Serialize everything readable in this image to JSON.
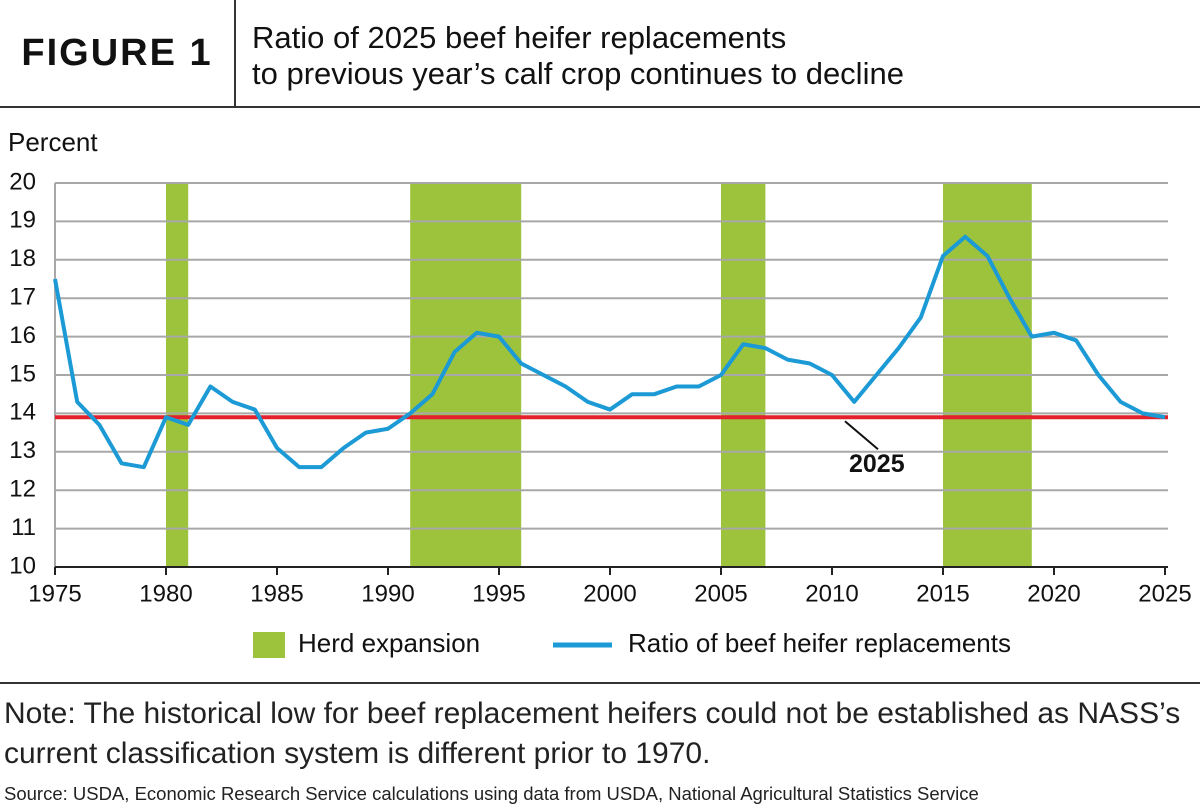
{
  "chart_data": {
    "type": "line",
    "label": "FIGURE 1",
    "title": [
      "Ratio of 2025 beef heifer replacements",
      "to previous year’s calf crop continues to decline"
    ],
    "ylabel": "Percent",
    "x": [
      1975,
      1976,
      1977,
      1978,
      1979,
      1980,
      1981,
      1982,
      1983,
      1984,
      1985,
      1986,
      1987,
      1988,
      1989,
      1990,
      1991,
      1992,
      1993,
      1994,
      1995,
      1996,
      1997,
      1998,
      1999,
      2000,
      2001,
      2002,
      2003,
      2004,
      2005,
      2006,
      2007,
      2008,
      2009,
      2010,
      2011,
      2012,
      2013,
      2014,
      2015,
      2016,
      2017,
      2018,
      2019,
      2020,
      2021,
      2022,
      2023,
      2024,
      2025
    ],
    "series": [
      {
        "name": "Ratio of beef heifer replacements",
        "color": "#1b9ad6",
        "values": [
          17.5,
          14.3,
          13.7,
          12.7,
          12.6,
          13.9,
          13.7,
          14.7,
          14.3,
          14.1,
          13.1,
          12.6,
          12.6,
          13.1,
          13.5,
          13.6,
          14.0,
          14.5,
          15.6,
          16.1,
          16.0,
          15.3,
          15.0,
          14.7,
          14.3,
          14.1,
          14.5,
          14.5,
          14.7,
          14.7,
          15.0,
          15.8,
          15.7,
          15.4,
          15.3,
          15.0,
          14.3,
          15.0,
          15.7,
          16.5,
          18.1,
          18.6,
          18.1,
          17.0,
          16.0,
          16.1,
          15.9,
          15.0,
          14.3,
          14.0,
          13.9
        ]
      }
    ],
    "bands": {
      "name": "Herd expansion",
      "color": "#9dc23b",
      "ranges": [
        [
          1980,
          1981
        ],
        [
          1991,
          1996
        ],
        [
          2005,
          2007
        ],
        [
          2015,
          2019
        ]
      ]
    },
    "reference_line": {
      "value": 13.9,
      "color": "#e3202b"
    },
    "annotation": {
      "text": "2025",
      "x": 2025,
      "y": 13.9
    },
    "xlim": [
      1975,
      2025
    ],
    "xticks": [
      1975,
      1980,
      1985,
      1990,
      1995,
      2000,
      2005,
      2010,
      2015,
      2020,
      2025
    ],
    "ylim": [
      10,
      20
    ],
    "yticks": [
      10,
      11,
      12,
      13,
      14,
      15,
      16,
      17,
      18,
      19,
      20
    ],
    "grid": true,
    "note": "Note: The historical low for beef replacement heifers could not be established as NASS’s current classification system is different prior to 1970.",
    "source": "Source: USDA, Economic Research Service calculations using data from USDA, National Agricultural Statistics Service"
  }
}
